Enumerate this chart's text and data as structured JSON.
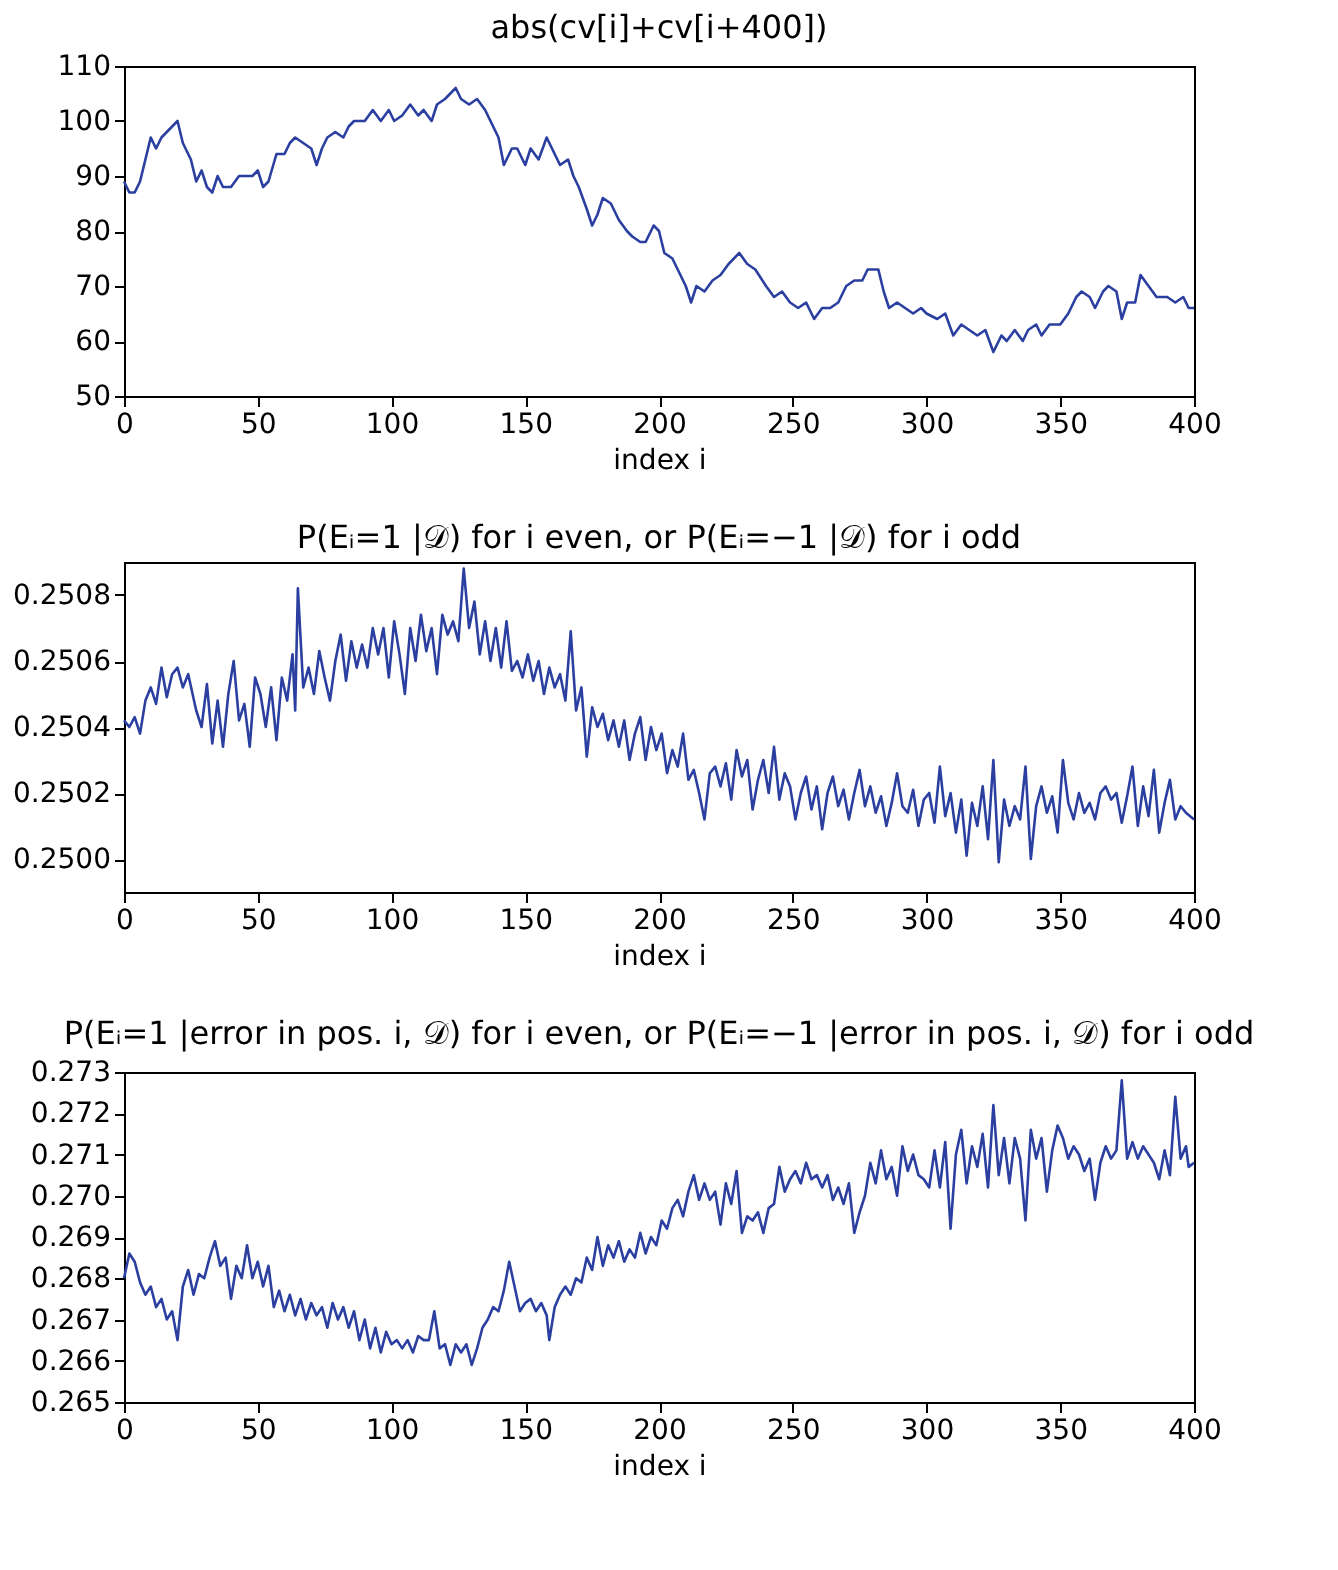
{
  "chart_data": [
    {
      "type": "line",
      "title": "abs(cv[i]+cv[i+400])",
      "xlabel": "index i",
      "xlim": [
        0,
        400
      ],
      "xticks": [
        0,
        50,
        100,
        150,
        200,
        250,
        300,
        350,
        400
      ],
      "ylim": [
        50,
        110
      ],
      "yticks": [
        50,
        60,
        70,
        80,
        90,
        100,
        110
      ],
      "grid": false,
      "series": [
        {
          "color": "#2b3fa0",
          "x": [
            0,
            2,
            4,
            6,
            8,
            10,
            12,
            14,
            16,
            18,
            20,
            22,
            25,
            27,
            29,
            31,
            33,
            35,
            37,
            40,
            43,
            48,
            50,
            52,
            54,
            57,
            60,
            62,
            64,
            67,
            70,
            72,
            74,
            76,
            79,
            82,
            84,
            86,
            90,
            93,
            96,
            99,
            101,
            104,
            107,
            110,
            112,
            115,
            117,
            120,
            124,
            126,
            129,
            132,
            135,
            138,
            140,
            142,
            145,
            147,
            150,
            152,
            155,
            158,
            160,
            163,
            166,
            168,
            170,
            173,
            175,
            177,
            179,
            182,
            185,
            188,
            190,
            193,
            195,
            198,
            200,
            202,
            205,
            208,
            210,
            212,
            214,
            217,
            220,
            223,
            226,
            230,
            233,
            236,
            240,
            243,
            246,
            249,
            252,
            255,
            258,
            261,
            264,
            267,
            270,
            273,
            276,
            278,
            282,
            284,
            286,
            289,
            292,
            295,
            298,
            300,
            304,
            307,
            310,
            313,
            316,
            319,
            322,
            325,
            328,
            330,
            333,
            336,
            338,
            341,
            343,
            346,
            350,
            353,
            356,
            358,
            361,
            363,
            366,
            368,
            371,
            373,
            375,
            378,
            380,
            383,
            386,
            390,
            393,
            396,
            398,
            400
          ],
          "values": [
            89,
            87,
            87,
            89,
            93,
            97,
            95,
            97,
            98,
            99,
            100,
            96,
            93,
            89,
            91,
            88,
            87,
            90,
            88,
            88,
            90,
            90,
            91,
            88,
            89,
            94,
            94,
            96,
            97,
            96,
            95,
            92,
            95,
            97,
            98,
            97,
            99,
            100,
            100,
            102,
            100,
            102,
            100,
            101,
            103,
            101,
            102,
            100,
            103,
            104,
            106,
            104,
            103,
            104,
            102,
            99,
            97,
            92,
            95,
            95,
            92,
            95,
            93,
            97,
            95,
            92,
            93,
            90,
            88,
            84,
            81,
            83,
            86,
            85,
            82,
            80,
            79,
            78,
            78,
            81,
            80,
            76,
            75,
            72,
            70,
            67,
            70,
            69,
            71,
            72,
            74,
            76,
            74,
            73,
            70,
            68,
            69,
            67,
            66,
            67,
            64,
            66,
            66,
            67,
            70,
            71,
            71,
            73,
            73,
            69,
            66,
            67,
            66,
            65,
            66,
            65,
            64,
            65,
            61,
            63,
            62,
            61,
            62,
            58,
            61,
            60,
            62,
            60,
            62,
            63,
            61,
            63,
            63,
            65,
            68,
            69,
            68,
            66,
            69,
            70,
            69,
            64,
            67,
            67,
            72,
            70,
            68,
            68,
            67,
            68,
            66,
            66
          ]
        }
      ]
    },
    {
      "type": "line",
      "title": "P(Eᵢ=1 |𝒟) for i even, or P(Eᵢ=−1 |𝒟) for i odd",
      "xlabel": "index i",
      "xlim": [
        0,
        400
      ],
      "xticks": [
        0,
        50,
        100,
        150,
        200,
        250,
        300,
        350,
        400
      ],
      "ylim": [
        0.2499,
        0.2509
      ],
      "yticks": [
        {
          "value": 0.25,
          "label": "0.2500"
        },
        0.2502,
        0.2504,
        0.2506,
        0.2508
      ],
      "grid": false,
      "series": [
        {
          "color": "#2b3fa0",
          "x": [
            0,
            2,
            4,
            6,
            8,
            10,
            12,
            14,
            16,
            18,
            20,
            22,
            24,
            27,
            29,
            31,
            33,
            35,
            37,
            39,
            41,
            43,
            45,
            47,
            49,
            51,
            53,
            55,
            57,
            59,
            61,
            63,
            64,
            65,
            67,
            69,
            71,
            73,
            75,
            77,
            79,
            81,
            83,
            85,
            87,
            89,
            91,
            93,
            95,
            97,
            99,
            101,
            103,
            105,
            107,
            109,
            111,
            113,
            115,
            117,
            119,
            121,
            123,
            125,
            127,
            129,
            131,
            133,
            135,
            137,
            139,
            141,
            143,
            145,
            147,
            149,
            151,
            153,
            155,
            157,
            159,
            161,
            163,
            165,
            167,
            169,
            171,
            173,
            175,
            177,
            179,
            181,
            183,
            185,
            187,
            189,
            191,
            193,
            195,
            197,
            199,
            201,
            203,
            205,
            207,
            209,
            211,
            213,
            215,
            217,
            219,
            221,
            223,
            225,
            227,
            229,
            231,
            233,
            235,
            237,
            239,
            241,
            243,
            245,
            247,
            249,
            251,
            253,
            255,
            257,
            259,
            261,
            263,
            265,
            267,
            269,
            271,
            273,
            275,
            277,
            279,
            281,
            283,
            285,
            287,
            289,
            291,
            293,
            295,
            297,
            299,
            301,
            303,
            305,
            307,
            309,
            311,
            313,
            315,
            317,
            319,
            321,
            323,
            325,
            327,
            329,
            331,
            333,
            335,
            337,
            339,
            341,
            343,
            345,
            347,
            349,
            351,
            353,
            355,
            357,
            359,
            361,
            363,
            365,
            367,
            369,
            371,
            373,
            375,
            377,
            379,
            381,
            383,
            385,
            387,
            389,
            391,
            393,
            395,
            397,
            400
          ],
          "values": [
            0.25042,
            0.2504,
            0.25043,
            0.25038,
            0.25048,
            0.25052,
            0.25047,
            0.25058,
            0.25049,
            0.25056,
            0.25058,
            0.25052,
            0.25056,
            0.25045,
            0.2504,
            0.25053,
            0.25035,
            0.25048,
            0.25034,
            0.2505,
            0.2506,
            0.25042,
            0.25047,
            0.25034,
            0.25055,
            0.2505,
            0.2504,
            0.25052,
            0.25036,
            0.25055,
            0.25048,
            0.25062,
            0.25045,
            0.25082,
            0.25052,
            0.25058,
            0.2505,
            0.25063,
            0.25055,
            0.25048,
            0.2506,
            0.25068,
            0.25054,
            0.25066,
            0.25058,
            0.25065,
            0.25058,
            0.2507,
            0.25062,
            0.2507,
            0.25055,
            0.25072,
            0.25062,
            0.2505,
            0.2507,
            0.2506,
            0.25074,
            0.25063,
            0.2507,
            0.25056,
            0.25074,
            0.25068,
            0.25072,
            0.25066,
            0.25088,
            0.2507,
            0.25078,
            0.25062,
            0.25072,
            0.2506,
            0.2507,
            0.25058,
            0.25072,
            0.25057,
            0.2506,
            0.25055,
            0.25062,
            0.25054,
            0.2506,
            0.2505,
            0.25058,
            0.25052,
            0.25056,
            0.25048,
            0.25069,
            0.25045,
            0.25052,
            0.25031,
            0.25046,
            0.2504,
            0.25044,
            0.25036,
            0.25042,
            0.25034,
            0.25042,
            0.2503,
            0.25038,
            0.25043,
            0.2503,
            0.2504,
            0.25033,
            0.25038,
            0.25026,
            0.25033,
            0.25028,
            0.25038,
            0.25024,
            0.25027,
            0.2502,
            0.25012,
            0.25026,
            0.25028,
            0.25022,
            0.25029,
            0.25018,
            0.25033,
            0.25025,
            0.2503,
            0.25015,
            0.25024,
            0.2503,
            0.2502,
            0.25034,
            0.25018,
            0.25026,
            0.25022,
            0.25012,
            0.2502,
            0.25025,
            0.25015,
            0.25022,
            0.25009,
            0.2502,
            0.25025,
            0.25016,
            0.25021,
            0.25012,
            0.2502,
            0.25027,
            0.25016,
            0.25022,
            0.25014,
            0.25019,
            0.2501,
            0.25017,
            0.25026,
            0.25016,
            0.25014,
            0.25021,
            0.2501,
            0.25018,
            0.2502,
            0.25011,
            0.25028,
            0.25013,
            0.2502,
            0.25008,
            0.25018,
            0.25001,
            0.25017,
            0.2501,
            0.25022,
            0.25006,
            0.2503,
            0.24999,
            0.25018,
            0.2501,
            0.25016,
            0.25012,
            0.25028,
            0.25,
            0.25016,
            0.25022,
            0.25014,
            0.25019,
            0.25008,
            0.2503,
            0.25017,
            0.25012,
            0.2502,
            0.25014,
            0.25017,
            0.25012,
            0.2502,
            0.25022,
            0.25018,
            0.2502,
            0.25011,
            0.25019,
            0.25028,
            0.2501,
            0.25022,
            0.25013,
            0.25027,
            0.25008,
            0.25017,
            0.25024,
            0.25012,
            0.25016,
            0.25014,
            0.25012
          ]
        }
      ]
    },
    {
      "type": "line",
      "title": "P(Eᵢ=1 |error in pos. i, 𝒟) for i even, or P(Eᵢ=−1 |error in pos. i, 𝒟) for i odd",
      "xlabel": "index i",
      "xlim": [
        0,
        400
      ],
      "xticks": [
        0,
        50,
        100,
        150,
        200,
        250,
        300,
        350,
        400
      ],
      "ylim": [
        0.265,
        0.273
      ],
      "yticks": [
        0.265,
        0.266,
        0.267,
        0.268,
        0.269,
        {
          "value": 0.27,
          "label": "0.270"
        },
        0.271,
        0.272,
        0.273
      ],
      "grid": false,
      "series": [
        {
          "color": "#2b3fa0",
          "x": [
            0,
            2,
            4,
            6,
            8,
            10,
            12,
            14,
            16,
            18,
            20,
            22,
            24,
            26,
            28,
            30,
            32,
            34,
            36,
            38,
            40,
            42,
            44,
            46,
            48,
            50,
            52,
            54,
            56,
            58,
            60,
            62,
            64,
            66,
            68,
            70,
            72,
            74,
            76,
            78,
            80,
            82,
            84,
            86,
            88,
            90,
            92,
            94,
            96,
            98,
            100,
            102,
            104,
            106,
            108,
            110,
            112,
            114,
            116,
            118,
            120,
            122,
            124,
            126,
            128,
            130,
            132,
            134,
            136,
            138,
            140,
            142,
            144,
            146,
            148,
            150,
            152,
            154,
            156,
            158,
            159,
            161,
            163,
            165,
            167,
            169,
            171,
            173,
            175,
            177,
            179,
            181,
            183,
            185,
            187,
            189,
            191,
            193,
            195,
            197,
            199,
            201,
            203,
            205,
            207,
            209,
            211,
            213,
            215,
            217,
            219,
            221,
            223,
            225,
            227,
            229,
            231,
            233,
            235,
            237,
            239,
            241,
            243,
            245,
            247,
            249,
            251,
            253,
            255,
            257,
            259,
            261,
            263,
            265,
            267,
            269,
            271,
            273,
            275,
            277,
            279,
            281,
            283,
            285,
            287,
            289,
            291,
            293,
            295,
            297,
            299,
            301,
            303,
            305,
            307,
            309,
            311,
            313,
            315,
            317,
            319,
            321,
            323,
            325,
            327,
            329,
            331,
            333,
            335,
            337,
            339,
            341,
            343,
            345,
            347,
            349,
            351,
            353,
            355,
            357,
            359,
            361,
            363,
            365,
            367,
            369,
            371,
            373,
            375,
            377,
            379,
            381,
            383,
            385,
            387,
            389,
            391,
            393,
            395,
            397,
            398,
            400
          ],
          "values": [
            0.268,
            0.2686,
            0.2684,
            0.2679,
            0.2676,
            0.2678,
            0.2673,
            0.2675,
            0.267,
            0.2672,
            0.2665,
            0.2678,
            0.2682,
            0.2676,
            0.2681,
            0.268,
            0.2685,
            0.2689,
            0.2683,
            0.2685,
            0.2675,
            0.2683,
            0.268,
            0.2688,
            0.268,
            0.2684,
            0.2678,
            0.2683,
            0.2673,
            0.2677,
            0.2672,
            0.2676,
            0.2671,
            0.2675,
            0.267,
            0.2674,
            0.2671,
            0.2673,
            0.2668,
            0.2674,
            0.267,
            0.2673,
            0.2668,
            0.2672,
            0.2665,
            0.267,
            0.2663,
            0.2668,
            0.2662,
            0.2667,
            0.2664,
            0.2665,
            0.2663,
            0.2665,
            0.2662,
            0.2666,
            0.2665,
            0.2665,
            0.2672,
            0.2663,
            0.2664,
            0.2659,
            0.2664,
            0.2662,
            0.2664,
            0.2659,
            0.2663,
            0.2668,
            0.267,
            0.2673,
            0.2672,
            0.2677,
            0.2684,
            0.2678,
            0.2672,
            0.2674,
            0.2675,
            0.2672,
            0.2674,
            0.2671,
            0.2665,
            0.2673,
            0.2676,
            0.2678,
            0.2676,
            0.268,
            0.2679,
            0.2685,
            0.2682,
            0.269,
            0.2683,
            0.2688,
            0.2685,
            0.2689,
            0.2684,
            0.2687,
            0.2685,
            0.2691,
            0.2686,
            0.269,
            0.2688,
            0.2694,
            0.2692,
            0.2697,
            0.2699,
            0.2695,
            0.2701,
            0.2705,
            0.2699,
            0.2703,
            0.2699,
            0.2701,
            0.2693,
            0.2703,
            0.2698,
            0.2706,
            0.2691,
            0.2695,
            0.2694,
            0.2696,
            0.2691,
            0.2697,
            0.2698,
            0.2707,
            0.2701,
            0.2704,
            0.2706,
            0.2703,
            0.2708,
            0.2704,
            0.2705,
            0.2702,
            0.2705,
            0.2699,
            0.2702,
            0.2698,
            0.2703,
            0.2691,
            0.2696,
            0.27,
            0.2708,
            0.2703,
            0.2711,
            0.2704,
            0.2707,
            0.27,
            0.2712,
            0.2706,
            0.271,
            0.2705,
            0.2704,
            0.2702,
            0.2711,
            0.2702,
            0.2713,
            0.2692,
            0.271,
            0.2716,
            0.2703,
            0.2712,
            0.2707,
            0.2715,
            0.2702,
            0.2722,
            0.2705,
            0.2714,
            0.2703,
            0.2714,
            0.2709,
            0.2694,
            0.2716,
            0.2709,
            0.2714,
            0.2701,
            0.2711,
            0.2717,
            0.2714,
            0.2709,
            0.2712,
            0.271,
            0.2706,
            0.2709,
            0.2699,
            0.2708,
            0.2712,
            0.2709,
            0.2711,
            0.2728,
            0.2709,
            0.2713,
            0.2709,
            0.2712,
            0.271,
            0.2708,
            0.2704,
            0.2711,
            0.2705,
            0.2724,
            0.2709,
            0.2712,
            0.2707,
            0.2708
          ]
        }
      ]
    }
  ]
}
